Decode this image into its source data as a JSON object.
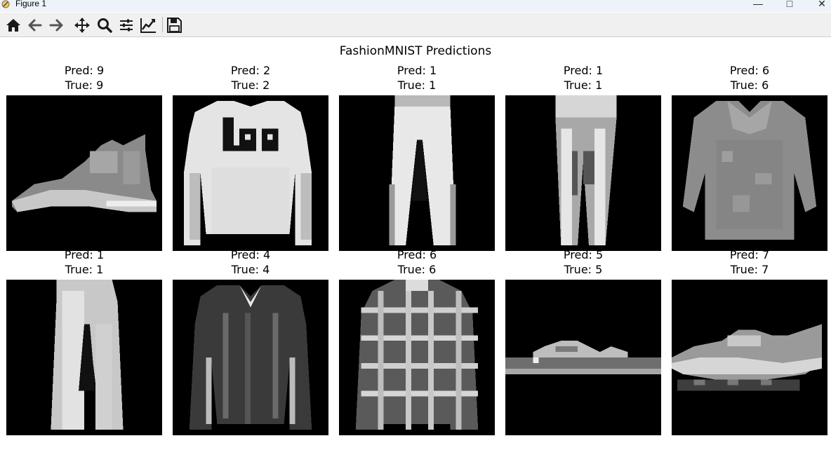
{
  "window": {
    "title": "Figure 1",
    "controls": [
      "minimize",
      "maximize",
      "close"
    ]
  },
  "toolbar": {
    "buttons": [
      {
        "name": "home",
        "icon": "home-icon"
      },
      {
        "name": "back",
        "icon": "arrow-left-icon"
      },
      {
        "name": "forward",
        "icon": "arrow-right-icon"
      },
      {
        "name": "pan",
        "icon": "move-icon"
      },
      {
        "name": "zoom",
        "icon": "magnifier-icon"
      },
      {
        "name": "configure-subplots",
        "icon": "sliders-icon"
      },
      {
        "name": "edit-axes",
        "icon": "line-chart-icon"
      },
      {
        "name": "save",
        "icon": "floppy-disk-icon"
      }
    ]
  },
  "figure": {
    "suptitle": "FashionMNIST Predictions",
    "panels": [
      {
        "pred": "Pred: 9",
        "true": "True: 9",
        "item": "ankle-boot"
      },
      {
        "pred": "Pred: 2",
        "true": "True: 2",
        "item": "pullover"
      },
      {
        "pred": "Pred: 1",
        "true": "True: 1",
        "item": "trouser"
      },
      {
        "pred": "Pred: 1",
        "true": "True: 1",
        "item": "trouser"
      },
      {
        "pred": "Pred: 6",
        "true": "True: 6",
        "item": "shirt"
      },
      {
        "pred": "Pred: 1",
        "true": "True: 1",
        "item": "trouser"
      },
      {
        "pred": "Pred: 4",
        "true": "True: 4",
        "item": "coat"
      },
      {
        "pred": "Pred: 6",
        "true": "True: 6",
        "item": "shirt"
      },
      {
        "pred": "Pred: 5",
        "true": "True: 5",
        "item": "sandal"
      },
      {
        "pred": "Pred: 7",
        "true": "True: 7",
        "item": "sneaker"
      }
    ]
  },
  "colors": {
    "titlebar": "#eef3f9",
    "toolbar": "#f0f0f0",
    "image_background": "#000000",
    "icon": "#1a1a1a"
  }
}
